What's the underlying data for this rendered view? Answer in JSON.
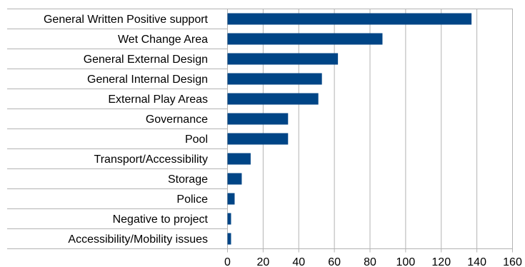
{
  "chart_data": {
    "type": "bar",
    "orientation": "horizontal",
    "categories": [
      "General Written Positive support",
      "Wet Change Area",
      "General External Design",
      "General Internal Design",
      "External Play Areas",
      "Governance",
      "Pool",
      "Transport/Accessibility",
      "Storage",
      "Police",
      "Negative to project",
      "Accessibility/Mobility issues"
    ],
    "values": [
      137,
      87,
      62,
      53,
      51,
      34,
      34,
      13,
      8,
      4,
      2,
      2
    ],
    "xlim": [
      0,
      160
    ],
    "xticks": [
      "0",
      "20",
      "40",
      "60",
      "80",
      "100",
      "120",
      "140",
      "160"
    ],
    "title": "",
    "xlabel": "",
    "ylabel": "",
    "grid": true,
    "legend": "none",
    "bar_color": "#004586"
  }
}
